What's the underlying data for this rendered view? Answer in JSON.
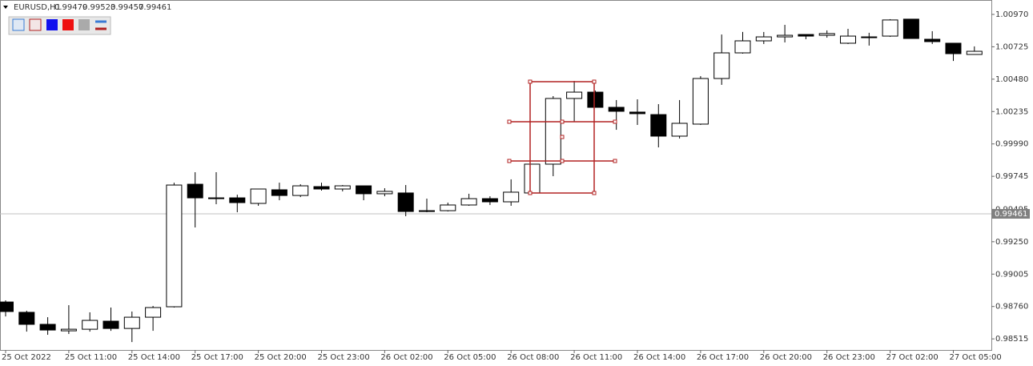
{
  "chart_data": {
    "type": "candlestick",
    "header_symbol": "EURUSD,H1",
    "header_values": [
      0.99479,
      0.99523,
      0.99457,
      0.99461
    ],
    "categories": [
      "25 Oct 2022",
      null,
      null,
      "25 Oct 11:00",
      null,
      null,
      "25 Oct 14:00",
      null,
      null,
      "25 Oct 17:00",
      null,
      null,
      "25 Oct 20:00",
      null,
      null,
      "25 Oct 23:00",
      null,
      null,
      "26 Oct 02:00",
      null,
      null,
      "26 Oct 05:00",
      null,
      null,
      "26 Oct 08:00",
      null,
      null,
      "26 Oct 11:00",
      null,
      null,
      "26 Oct 14:00",
      null,
      null,
      "26 Oct 17:00",
      null,
      null,
      "26 Oct 20:00",
      null,
      null,
      "26 Oct 23:00",
      null,
      null,
      "27 Oct 02:00",
      null,
      null,
      "27 Oct 05:00",
      null
    ],
    "open": [
      0.98794,
      0.98716,
      0.98625,
      0.98576,
      0.98588,
      0.98649,
      0.98594,
      0.98679,
      0.98758,
      0.99685,
      0.99582,
      0.99582,
      0.9954,
      0.99643,
      0.996,
      0.99667,
      0.99649,
      0.99673,
      0.99613,
      0.99619,
      0.99485,
      0.99485,
      0.99528,
      0.99576,
      0.99552,
      0.99619,
      0.99837,
      1.00334,
      1.00382,
      1.00267,
      1.00231,
      1.00212,
      1.00049,
      1.0014,
      1.00485,
      1.00679,
      1.0077,
      1.008,
      1.00818,
      1.00812,
      1.00752,
      1.00794,
      1.00806,
      1.00934,
      1.00782,
      1.00752,
      1.00667
    ],
    "high": [
      0.98807,
      0.98728,
      0.98679,
      0.9877,
      0.98716,
      0.98752,
      0.98722,
      0.98764,
      0.99697,
      0.99776,
      0.99776,
      0.99606,
      0.99649,
      0.99697,
      0.99685,
      0.99697,
      0.99679,
      0.99673,
      0.99655,
      0.99679,
      0.99576,
      0.99546,
      0.99613,
      0.99594,
      0.99722,
      0.99837,
      1.00352,
      1.00467,
      1.00394,
      1.00322,
      1.00328,
      1.00291,
      1.00322,
      1.00503,
      1.00818,
      1.00837,
      1.00837,
      1.00891,
      1.00818,
      1.00849,
      1.00861,
      1.00831,
      1.00934,
      1.00934,
      1.00843,
      1.00752,
      1.00728
    ],
    "low": [
      0.98685,
      0.9857,
      0.98546,
      0.98552,
      0.9857,
      0.98576,
      0.98491,
      0.98576,
      0.98752,
      0.99358,
      0.99534,
      0.99473,
      0.99522,
      0.99564,
      0.99588,
      0.99637,
      0.99631,
      0.99564,
      0.99594,
      0.99443,
      0.99473,
      0.99479,
      0.99522,
      0.99528,
      0.99522,
      0.99619,
      0.99746,
      1.00158,
      1.00267,
      1.00097,
      1.00134,
      0.99964,
      1.00031,
      1.00134,
      1.00437,
      1.00673,
      1.00746,
      1.00758,
      1.00782,
      1.00794,
      1.00746,
      1.00734,
      1.008,
      1.00788,
      1.00746,
      1.00618,
      1.00667
    ],
    "close": [
      0.98722,
      0.98625,
      0.98582,
      0.98588,
      0.98655,
      0.98594,
      0.98679,
      0.98752,
      0.99679,
      0.99582,
      0.99582,
      0.99546,
      0.99649,
      0.996,
      0.99673,
      0.99649,
      0.99673,
      0.99613,
      0.99631,
      0.99479,
      0.99485,
      0.99528,
      0.99576,
      0.99552,
      0.99625,
      0.99837,
      1.00334,
      1.00382,
      1.00267,
      1.00237,
      1.00219,
      1.00049,
      1.00146,
      1.00485,
      1.00679,
      1.0077,
      1.008,
      1.00812,
      1.00806,
      1.00825,
      1.00806,
      1.008,
      1.00928,
      1.00788,
      1.00764,
      1.00673,
      1.00691
    ],
    "bull_color": "#ffffff",
    "bear_color": "#000000",
    "ylim": [
      0.98431,
      1.01079
    ],
    "yticks": [
      0.98515,
      {
        "value": 0.9876,
        "label": "0.98760"
      },
      0.99005,
      {
        "value": 0.9925,
        "label": "0.99250"
      },
      0.99495,
      0.99745,
      {
        "value": 0.9999,
        "label": "0.99990"
      },
      1.00235,
      {
        "value": 1.0048,
        "label": "1.00480"
      },
      1.00725,
      {
        "value": 1.0097,
        "label": "1.00970"
      }
    ],
    "price_line": 0.99461,
    "grid": false
  }
}
